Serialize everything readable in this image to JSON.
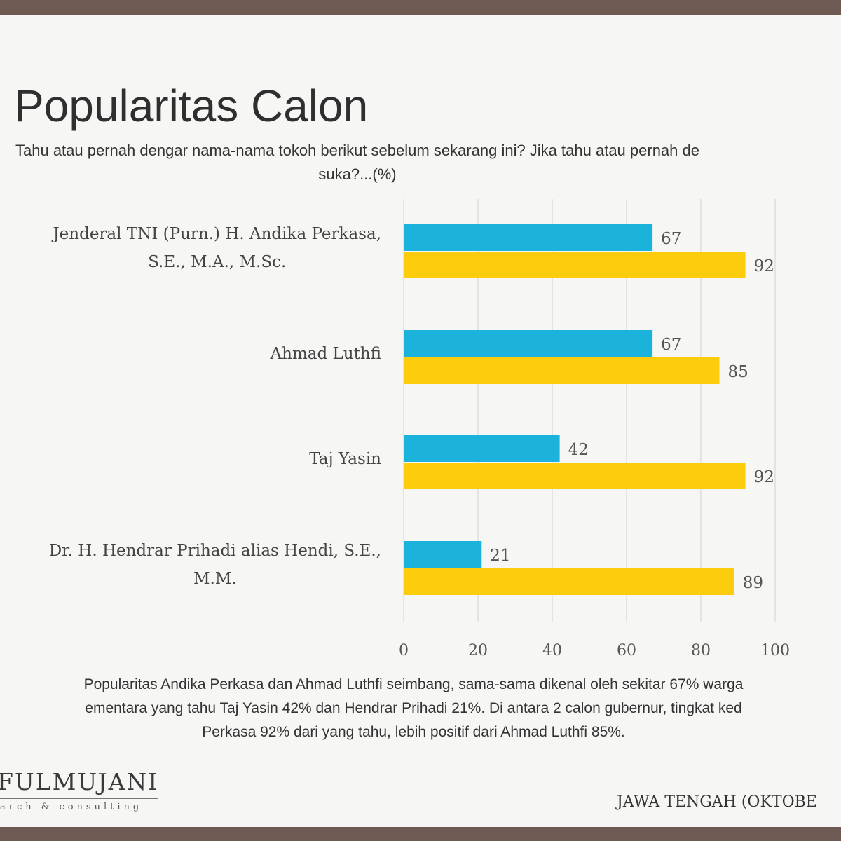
{
  "slide": {
    "title": "Popularitas Calon",
    "question_line1": "Tahu atau pernah dengar nama-nama tokoh berikut sebelum sekarang ini? Jika tahu atau pernah de",
    "question_line2": "suka?...(%)",
    "summary_line1": "Popularitas Andika Perkasa dan Ahmad Luthfi seimbang, sama-sama dikenal oleh sekitar 67% warga",
    "summary_line2": "ementara yang tahu Taj Yasin 42% dan Hendrar Prihadi 21%. Di antara 2 calon gubernur, tingkat ked",
    "summary_line3": "Perkasa 92% dari yang tahu, lebih positif dari Ahmad Luthfi 85%.",
    "logo_main": "FULMUJANI",
    "logo_sub": "arch & consulting",
    "footer_right": "JAWA TENGAH (OKTOBE"
  },
  "chart_data": {
    "type": "bar",
    "orientation": "horizontal",
    "categories": [
      [
        "Jenderal TNI (Purn.) H. Andika Perkasa,",
        "S.E., M.A., M.Sc."
      ],
      [
        "Ahmad Luthfi"
      ],
      [
        "Taj Yasin"
      ],
      [
        "Dr. H. Hendrar Prihadi alias Hendi, S.E.,",
        "M.M."
      ]
    ],
    "series": [
      {
        "values": [
          67,
          67,
          42,
          21
        ],
        "color": "#1bb3dc"
      },
      {
        "values": [
          92,
          85,
          92,
          89
        ],
        "color": "#fdcc0d"
      }
    ],
    "xlim": [
      0,
      100
    ],
    "xticks": [
      0,
      20,
      40,
      60,
      80,
      100
    ],
    "grid": true,
    "legend": "none"
  }
}
